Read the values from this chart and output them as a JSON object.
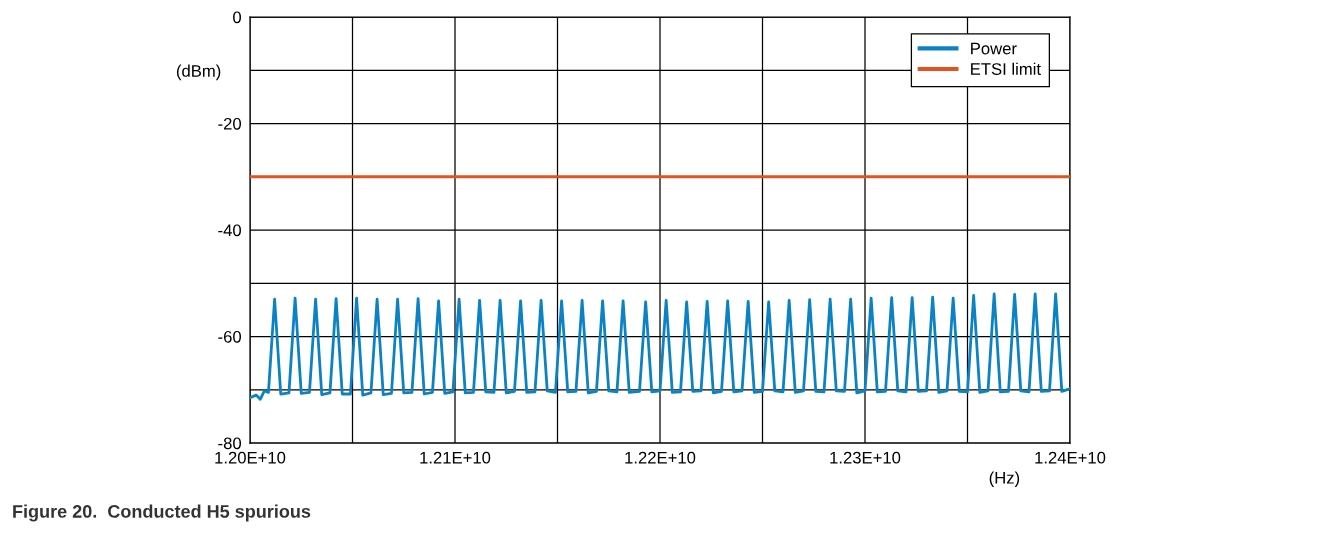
{
  "chart_data": {
    "type": "line",
    "title": "Figure 20.  Conducted H5 spurious",
    "xlabel": "(Hz)",
    "ylabel": "(dBm)",
    "series": [
      {
        "name": "Power",
        "color": "#0a82c4",
        "x": [
          12000000000.0,
          12003000000.0,
          12005000000.0,
          12007000000.0,
          12009000000.0,
          12012000000.0,
          12015000000.0,
          12019000000.0,
          12022000000.0,
          12025000000.0,
          12029000000.0,
          12032000000.0,
          12035000000.0,
          12039000000.0,
          12042000000.0,
          12045000000.0,
          12049000000.0,
          12052000000.0,
          12055000000.0,
          12059000000.0,
          12062000000.0,
          12065000000.0,
          12069000000.0,
          12072000000.0,
          12075000000.0,
          12079000000.0,
          12082000000.0,
          12085000000.0,
          12089000000.0,
          12092000000.0,
          12095000000.0,
          12099000000.0,
          12102000000.0,
          12105000000.0,
          12109000000.0,
          12112000000.0,
          12115000000.0,
          12119000000.0,
          12122000000.0,
          12125000000.0,
          12129000000.0,
          12132000000.0,
          12135000000.0,
          12139000000.0,
          12142000000.0,
          12145000000.0,
          12149000000.0,
          12152000000.0,
          12155000000.0,
          12159000000.0,
          12162000000.0,
          12165000000.0,
          12169000000.0,
          12172000000.0,
          12175000000.0,
          12179000000.0,
          12182000000.0,
          12185000000.0,
          12190000000.0,
          12193000000.0,
          12196000000.0,
          12200000000.0,
          12203000000.0,
          12206000000.0,
          12210000000.0,
          12213000000.0,
          12216000000.0,
          12220000000.0,
          12223000000.0,
          12226000000.0,
          12230000000.0,
          12233000000.0,
          12236000000.0,
          12240000000.0,
          12243000000.0,
          12246000000.0,
          12250000000.0,
          12253000000.0,
          12256000000.0,
          12260000000.0,
          12263000000.0,
          12266000000.0,
          12270000000.0,
          12273000000.0,
          12276000000.0,
          12280000000.0,
          12283000000.0,
          12286000000.0,
          12290000000.0,
          12293000000.0,
          12296000000.0,
          12300000000.0,
          12303000000.0,
          12306000000.0,
          12310000000.0,
          12313000000.0,
          12316000000.0,
          12320000000.0,
          12323000000.0,
          12326000000.0,
          12330000000.0,
          12333000000.0,
          12336000000.0,
          12340000000.0,
          12343000000.0,
          12346000000.0,
          12350000000.0,
          12353000000.0,
          12356000000.0,
          12360000000.0,
          12363000000.0,
          12366000000.0,
          12370000000.0,
          12373000000.0,
          12376000000.0,
          12380000000.0,
          12383000000.0,
          12386000000.0,
          12390000000.0,
          12393000000.0,
          12396000000.0,
          12400000000.0
        ],
        "values": [
          -71.5,
          -71,
          -71.8,
          -70.2,
          -70.5,
          -53,
          -70.8,
          -70.6,
          -52.8,
          -70.7,
          -70.5,
          -53,
          -70.9,
          -70.6,
          -52.9,
          -70.8,
          -70.8,
          -52.8,
          -71,
          -70.6,
          -53,
          -70.9,
          -70.7,
          -53,
          -70.6,
          -70.5,
          -52.9,
          -70.8,
          -70.5,
          -53.3,
          -70.7,
          -70.4,
          -53,
          -70.6,
          -70.5,
          -53.2,
          -70.4,
          -70.5,
          -53.2,
          -70.6,
          -70.3,
          -53.3,
          -70.5,
          -70.4,
          -53.2,
          -70.2,
          -70.5,
          -53.3,
          -70.4,
          -70.3,
          -53.2,
          -70.6,
          -70.3,
          -53.3,
          -70.2,
          -70.4,
          -53.3,
          -70.5,
          -70.3,
          -53.5,
          -70.4,
          -70.2,
          -53.2,
          -70.5,
          -70.4,
          -53.5,
          -70.3,
          -70.2,
          -53.4,
          -70.6,
          -70.3,
          -53.3,
          -70.4,
          -70.2,
          -53.4,
          -70.5,
          -70.3,
          -53.5,
          -70.2,
          -70.4,
          -53.2,
          -70.5,
          -70.2,
          -53.1,
          -70.3,
          -70.4,
          -53,
          -70.2,
          -70.3,
          -53,
          -70.6,
          -70.2,
          -52.8,
          -70.4,
          -70.3,
          -52.7,
          -70.2,
          -70.4,
          -52.7,
          -70.3,
          -70.2,
          -52.6,
          -70.5,
          -70.2,
          -52.8,
          -70.3,
          -70.4,
          -52.3,
          -70.5,
          -70.2,
          -52,
          -70.4,
          -70.3,
          -52.1,
          -70.2,
          -70.4,
          -52,
          -70.3,
          -70.2,
          -52,
          -70.3,
          -69.8
        ]
      },
      {
        "name": "ETSI limit",
        "color": "#e2531f",
        "x": [
          12000000000.0,
          12400000000.0
        ],
        "values": [
          -30,
          -30
        ]
      }
    ],
    "xlim": [
      12000000000.0,
      12400000000.0
    ],
    "xticks": [
      {
        "value": 12000000000.0,
        "label": "1.20E+10"
      },
      {
        "value": 12050000000.0,
        "label": null
      },
      {
        "value": 12100000000.0,
        "label": "1.21E+10"
      },
      {
        "value": 12150000000.0,
        "label": null
      },
      {
        "value": 12200000000.0,
        "label": "1.22E+10"
      },
      {
        "value": 12250000000.0,
        "label": null
      },
      {
        "value": 12300000000.0,
        "label": "1.23E+10"
      },
      {
        "value": 12350000000.0,
        "label": null
      },
      {
        "value": 12400000000.0,
        "label": "1.24E+10"
      }
    ],
    "ylim": [
      -80,
      0
    ],
    "yticks": [
      -80,
      {
        "value": -70,
        "label": null
      },
      -60,
      {
        "value": -50,
        "label": null
      },
      -40,
      {
        "value": -30,
        "label": null
      },
      -20,
      {
        "value": -10,
        "label": null
      },
      0
    ],
    "grid": true,
    "legend": "top right",
    "marker": "none",
    "line_style": "solid"
  }
}
